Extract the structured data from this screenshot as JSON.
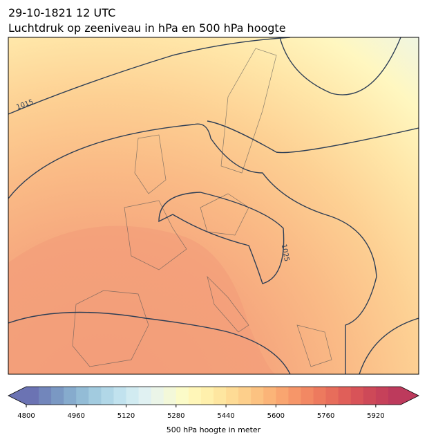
{
  "header": {
    "title": "29-10-1821 12 UTC",
    "subtitle": "Luchtdruk op zeeniveau in hPa en 500 hPa hoogte"
  },
  "map": {
    "contour_labels": [
      1015,
      1025
    ]
  },
  "colorbar": {
    "label": "500 hPa hoogte in meter",
    "lim": [
      4800,
      6000
    ],
    "ticks": [
      4800,
      4960,
      5120,
      5280,
      5440,
      5600,
      5760,
      5920
    ],
    "colors": [
      "#6b73b3",
      "#7286bb",
      "#7a98c3",
      "#86abcd",
      "#93bcd6",
      "#a2cbdf",
      "#b1d7e7",
      "#c1e2ee",
      "#d1ebf1",
      "#e0f1f2",
      "#ebf5e8",
      "#f3f8d9",
      "#fbfbc8",
      "#fff6b8",
      "#fff0ac",
      "#fee6a0",
      "#fedb95",
      "#fdcf8b",
      "#fcc281",
      "#fbb478",
      "#f9a570",
      "#f69669",
      "#f28863",
      "#ed7a5e",
      "#e76d5b",
      "#e05f59",
      "#d85358",
      "#ce4958",
      "#c6415a",
      "#bd3a5c"
    ]
  }
}
